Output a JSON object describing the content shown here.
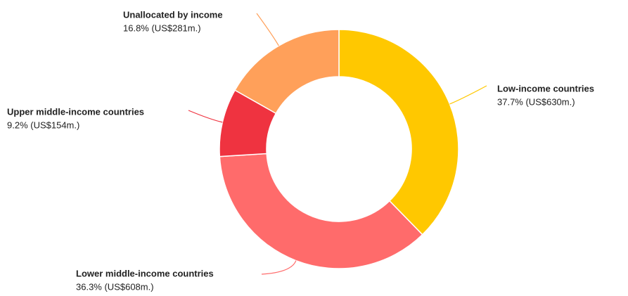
{
  "chart_data": {
    "type": "donut",
    "categories": [
      "Low-income countries",
      "Lower middle-income countries",
      "Upper middle-income countries",
      "Unallocated by income"
    ],
    "values": [
      37.7,
      36.3,
      9.2,
      16.8
    ],
    "value_labels": [
      "37.7% (US$630m.)",
      "36.3% (US$608m.)",
      "9.2% (US$154m.)",
      "16.8% (US$281m.)"
    ],
    "colors": [
      "#ffc800",
      "#ff6b6b",
      "#ef3340",
      "#ffa05a"
    ]
  }
}
